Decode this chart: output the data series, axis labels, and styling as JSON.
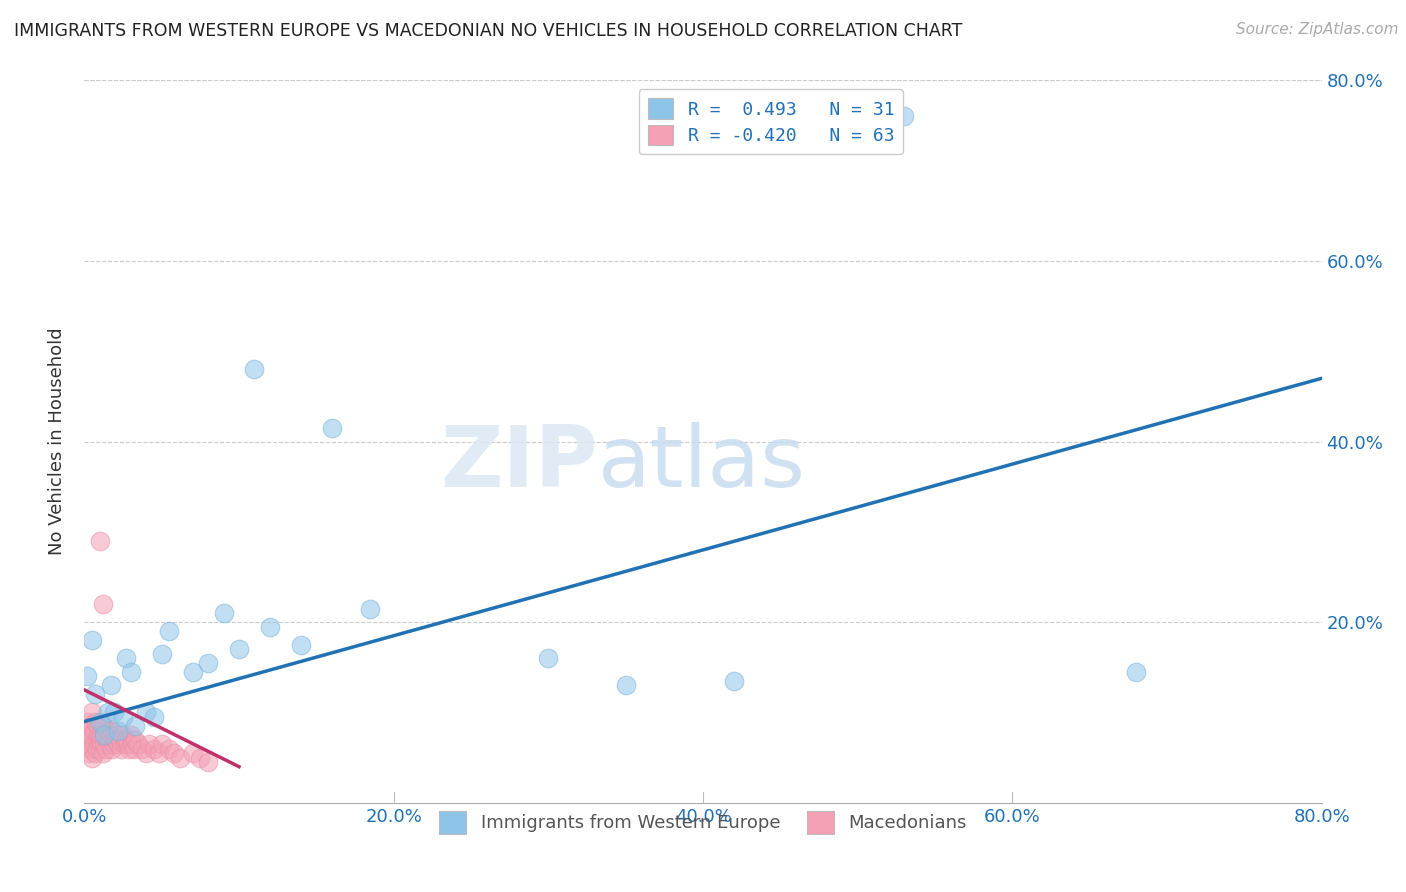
{
  "title": "IMMIGRANTS FROM WESTERN EUROPE VS MACEDONIAN NO VEHICLES IN HOUSEHOLD CORRELATION CHART",
  "source": "Source: ZipAtlas.com",
  "ylabel": "No Vehicles in Household",
  "xlim": [
    0,
    80
  ],
  "ylim": [
    0,
    80
  ],
  "xtick_labels": [
    "0.0%",
    "20.0%",
    "40.0%",
    "60.0%",
    "80.0%"
  ],
  "xtick_vals": [
    0,
    20,
    40,
    60,
    80
  ],
  "ytick_labels": [
    "20.0%",
    "40.0%",
    "60.0%",
    "80.0%"
  ],
  "ytick_vals": [
    20,
    40,
    60,
    80
  ],
  "grid_color": "#cccccc",
  "blue_color": "#8ec4e8",
  "pink_color": "#f4a0b5",
  "blue_edge_color": "#7ab5d8",
  "pink_edge_color": "#e890a5",
  "blue_line_color": "#2171b5",
  "pink_line_color": "#c0306a",
  "legend_R_blue": "R =  0.493",
  "legend_N_blue": "N = 31",
  "legend_R_pink": "R = -0.420",
  "legend_N_pink": "N = 63",
  "blue_points_x": [
    0.2,
    0.5,
    0.7,
    1.0,
    1.3,
    1.5,
    1.7,
    1.9,
    2.2,
    2.5,
    2.7,
    3.0,
    3.3,
    4.0,
    4.5,
    5.0,
    5.5,
    7.0,
    8.0,
    9.0,
    10.0,
    11.0,
    12.0,
    14.0,
    16.0,
    18.5,
    30.0,
    35.0,
    42.0,
    53.0,
    68.0
  ],
  "blue_points_y": [
    14.0,
    18.0,
    12.0,
    9.0,
    7.5,
    10.0,
    13.0,
    10.0,
    8.0,
    9.5,
    16.0,
    14.5,
    8.5,
    10.0,
    9.5,
    16.5,
    19.0,
    14.5,
    15.5,
    21.0,
    17.0,
    48.0,
    19.5,
    17.5,
    41.5,
    21.5,
    16.0,
    13.0,
    13.5,
    76.0,
    14.5
  ],
  "pink_points_x": [
    0.1,
    0.2,
    0.2,
    0.3,
    0.3,
    0.4,
    0.4,
    0.5,
    0.5,
    0.5,
    0.6,
    0.6,
    0.7,
    0.7,
    0.8,
    0.8,
    0.9,
    0.9,
    1.0,
    1.0,
    1.1,
    1.1,
    1.2,
    1.2,
    1.3,
    1.3,
    1.4,
    1.5,
    1.5,
    1.6,
    1.7,
    1.8,
    1.8,
    1.9,
    2.0,
    2.1,
    2.2,
    2.3,
    2.4,
    2.5,
    2.6,
    2.7,
    2.8,
    2.9,
    3.0,
    3.1,
    3.2,
    3.3,
    3.5,
    3.7,
    4.0,
    4.2,
    4.5,
    4.8,
    5.0,
    5.5,
    5.8,
    6.2,
    7.0,
    7.5,
    8.0,
    1.0,
    1.2
  ],
  "pink_points_y": [
    8.0,
    6.5,
    9.0,
    7.0,
    5.5,
    8.5,
    6.0,
    7.5,
    5.0,
    10.0,
    6.5,
    8.0,
    5.5,
    9.0,
    7.0,
    6.0,
    7.5,
    8.5,
    6.0,
    7.0,
    6.5,
    7.5,
    5.5,
    8.5,
    6.5,
    7.5,
    6.0,
    7.0,
    8.0,
    6.5,
    7.5,
    6.0,
    8.0,
    6.5,
    7.0,
    7.5,
    6.5,
    7.0,
    6.0,
    7.5,
    6.5,
    7.0,
    6.5,
    6.0,
    7.5,
    6.5,
    6.0,
    7.0,
    6.5,
    6.0,
    5.5,
    6.5,
    6.0,
    5.5,
    6.5,
    6.0,
    5.5,
    5.0,
    5.5,
    5.0,
    4.5,
    29.0,
    22.0
  ],
  "watermark_zip": "ZIP",
  "watermark_atlas": "atlas",
  "blue_trend_x": [
    0,
    80
  ],
  "blue_trend_y": [
    9.0,
    47.0
  ],
  "pink_trend_x": [
    0,
    10
  ],
  "pink_trend_y": [
    12.5,
    4.0
  ]
}
